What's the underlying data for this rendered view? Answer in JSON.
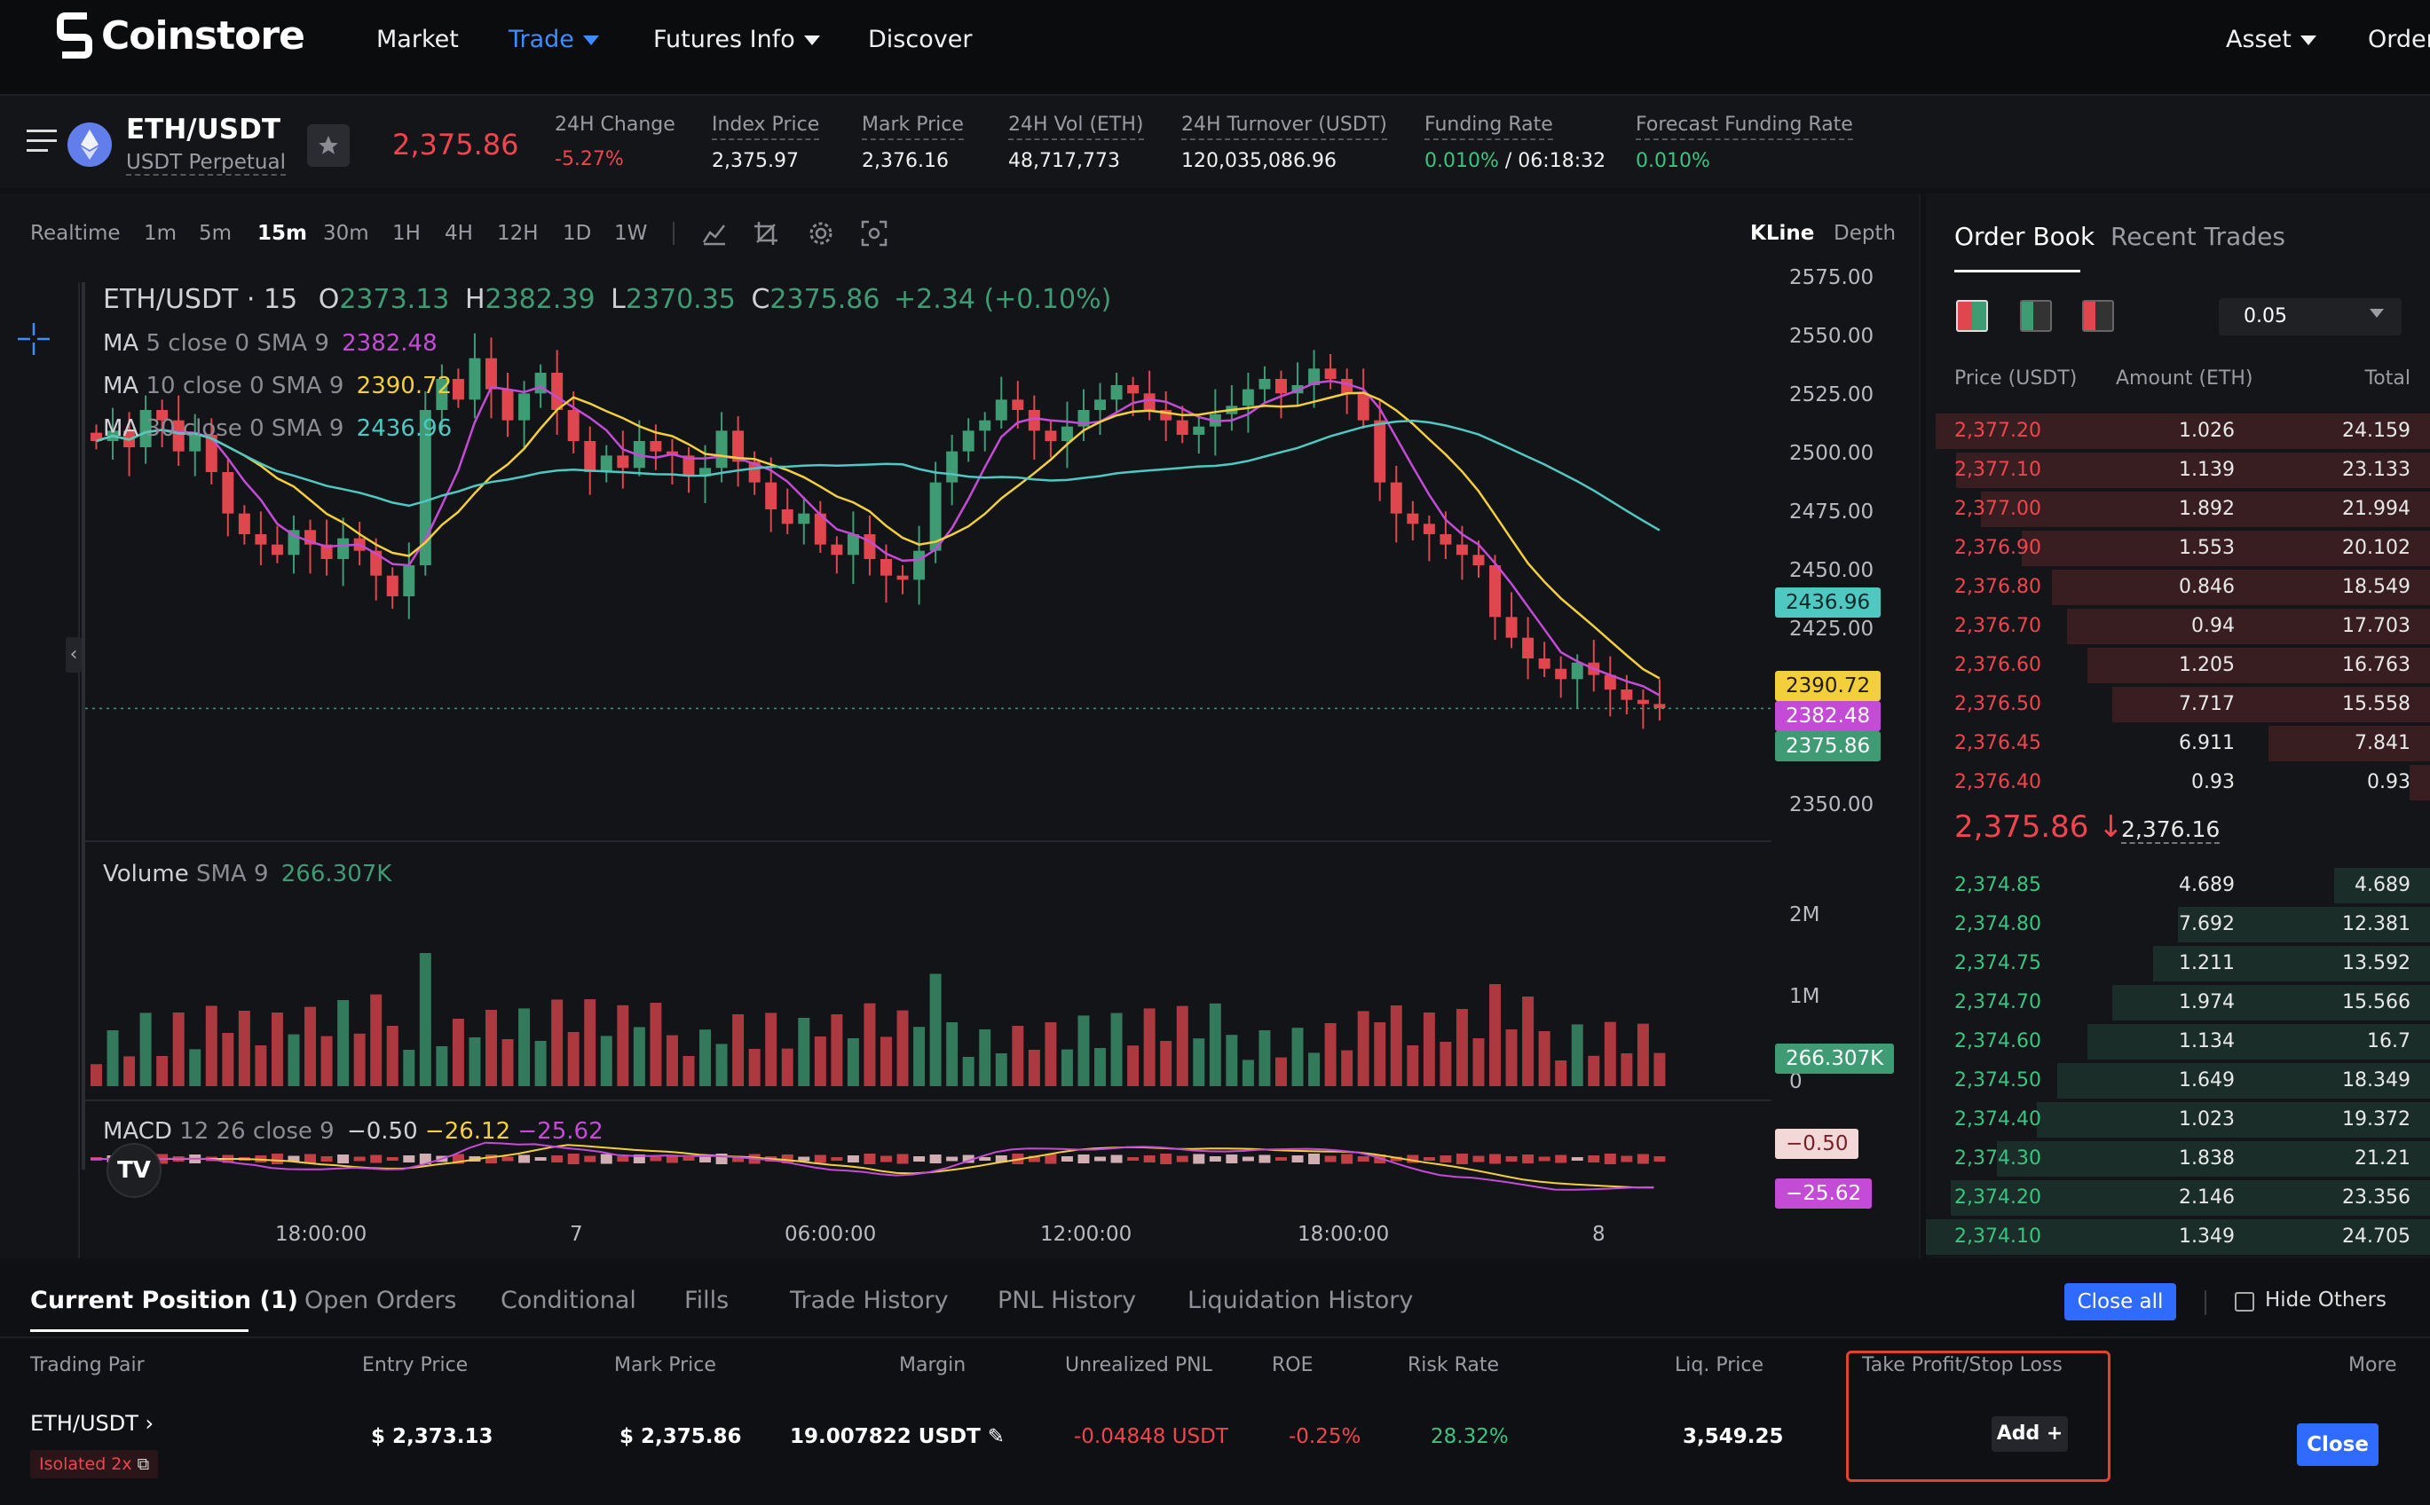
{
  "nav": {
    "logo": "Coinstore",
    "items": [
      {
        "label": "Market",
        "active": false,
        "dropdown": false
      },
      {
        "label": "Trade",
        "active": true,
        "dropdown": true
      },
      {
        "label": "Futures Info",
        "active": false,
        "dropdown": true
      },
      {
        "label": "Discover",
        "active": false,
        "dropdown": false
      }
    ],
    "right": {
      "asset": "Asset",
      "orders": "Order"
    },
    "colors": {
      "active": "#3f8cff"
    }
  },
  "ticker": {
    "symbol": "ETH/USDT",
    "subtitle": "USDT Perpetual",
    "last_price": "2,375.86",
    "stats": [
      {
        "label": "24H Change",
        "value": "-5.27%",
        "color": "#f0454e"
      },
      {
        "label": "Index Price",
        "value": "2,375.97"
      },
      {
        "label": "Mark Price",
        "value": "2,376.16"
      },
      {
        "label": "24H Vol (ETH)",
        "value": "48,717,773"
      },
      {
        "label": "24H Turnover (USDT)",
        "value": "120,035,086.96"
      },
      {
        "label": "Funding Rate",
        "value_a": "0.010%",
        "value_b": " / 06:18:32"
      },
      {
        "label": "Forecast Funding Rate",
        "value": "0.010%"
      }
    ]
  },
  "chart": {
    "timeframes": [
      "Realtime",
      "1m",
      "5m",
      "15m",
      "30m",
      "1H",
      "4H",
      "12H",
      "1D",
      "1W"
    ],
    "active_timeframe": "15m",
    "views": {
      "kline": "KLine",
      "depth": "Depth"
    },
    "legend": {
      "title": "ETH/USDT · 15",
      "o_label": "O",
      "o": "2373.13",
      "h_label": "H",
      "h": "2382.39",
      "l_label": "L",
      "l": "2370.35",
      "c_label": "C",
      "c": "2375.86",
      "chg": "+2.34 (+0.10%)",
      "ma5_label": "MA",
      "ma5_params": "5 close 0 SMA 9",
      "ma5": "2382.48",
      "ma10_label": "MA",
      "ma10_params": "10 close 0 SMA 9",
      "ma10": "2390.72",
      "ma30_label": "MA",
      "ma30_params": "30 close 0 SMA 9",
      "ma30": "2436.96",
      "vol_label": "Volume",
      "vol_params": "SMA 9",
      "vol": "266.307K",
      "macd_label": "MACD",
      "macd_params": "12 26 close 9",
      "macd1": "−0.50",
      "macd2": "−26.12",
      "macd3": "−25.62"
    },
    "price_axis": [
      "2575.00",
      "2550.00",
      "2525.00",
      "2500.00",
      "2475.00",
      "2450.00",
      "2425.00",
      "2350.00"
    ],
    "price_tags": {
      "ma30": "2436.96",
      "ma10": "2390.72",
      "ma5": "2382.48",
      "last": "2375.86",
      "vol": "266.307K",
      "macd_a": "−0.50",
      "macd_b": "−25.62"
    },
    "vol_axis": [
      "2M",
      "1M",
      "0"
    ],
    "time_axis": [
      "18:00:00",
      "7",
      "06:00:00",
      "12:00:00",
      "18:00:00",
      "8"
    ],
    "colors": {
      "up": "#3f9b74",
      "down": "#e0464e",
      "ma5": "#c44bd6",
      "ma10": "#f2cf3b",
      "ma30": "#4fc8c2"
    }
  },
  "chart_data": {
    "type": "candlestick",
    "symbol": "ETH/USDT",
    "interval": "15",
    "ylim": [
      2340,
      2580
    ],
    "close_series": [
      2505,
      2510,
      2502,
      2520,
      2515,
      2500,
      2508,
      2490,
      2470,
      2460,
      2455,
      2450,
      2462,
      2455,
      2448,
      2458,
      2452,
      2440,
      2430,
      2445,
      2520,
      2535,
      2525,
      2545,
      2530,
      2515,
      2528,
      2538,
      2520,
      2505,
      2490,
      2498,
      2492,
      2505,
      2500,
      2498,
      2488,
      2492,
      2510,
      2495,
      2485,
      2472,
      2465,
      2470,
      2455,
      2450,
      2460,
      2448,
      2440,
      2438,
      2452,
      2485,
      2500,
      2510,
      2515,
      2525,
      2520,
      2510,
      2505,
      2512,
      2520,
      2525,
      2532,
      2528,
      2520,
      2515,
      2508,
      2512,
      2518,
      2522,
      2530,
      2535,
      2528,
      2532,
      2540,
      2535,
      2528,
      2515,
      2485,
      2470,
      2465,
      2460,
      2455,
      2450,
      2445,
      2420,
      2410,
      2400,
      2395,
      2390,
      2398,
      2392,
      2385,
      2380,
      2378,
      2376
    ],
    "ma5_last": 2382.48,
    "ma10_last": 2390.72,
    "ma30_last": 2436.96,
    "last_price": 2375.86,
    "volume_last": "266.307K",
    "macd": [
      -0.5,
      -26.12,
      -25.62
    ]
  },
  "book": {
    "tabs": [
      "Order Book",
      "Recent Trades"
    ],
    "precision": "0.05",
    "headers": [
      "Price (USDT)",
      "Amount (ETH)",
      "Total"
    ],
    "asks": [
      [
        "2,377.20",
        "1.026",
        "24.159"
      ],
      [
        "2,377.10",
        "1.139",
        "23.133"
      ],
      [
        "2,377.00",
        "1.892",
        "21.994"
      ],
      [
        "2,376.90",
        "1.553",
        "20.102"
      ],
      [
        "2,376.80",
        "0.846",
        "18.549"
      ],
      [
        "2,376.70",
        "0.94",
        "17.703"
      ],
      [
        "2,376.60",
        "1.205",
        "16.763"
      ],
      [
        "2,376.50",
        "7.717",
        "15.558"
      ],
      [
        "2,376.45",
        "6.911",
        "7.841"
      ],
      [
        "2,376.40",
        "0.93",
        "0.93"
      ]
    ],
    "mid_price": "2,375.86",
    "mid_arrow": "↓",
    "mark_price": "2,376.16",
    "bids": [
      [
        "2,374.85",
        "4.689",
        "4.689"
      ],
      [
        "2,374.80",
        "7.692",
        "12.381"
      ],
      [
        "2,374.75",
        "1.211",
        "13.592"
      ],
      [
        "2,374.70",
        "1.974",
        "15.566"
      ],
      [
        "2,374.60",
        "1.134",
        "16.7"
      ],
      [
        "2,374.50",
        "1.649",
        "18.349"
      ],
      [
        "2,374.40",
        "1.023",
        "19.372"
      ],
      [
        "2,374.30",
        "1.838",
        "21.21"
      ],
      [
        "2,374.20",
        "2.146",
        "23.356"
      ],
      [
        "2,374.10",
        "1.349",
        "24.705"
      ]
    ],
    "ask_depth": [
      0.98,
      0.94,
      0.89,
      0.81,
      0.75,
      0.72,
      0.68,
      0.63,
      0.32,
      0.04
    ],
    "bid_depth": [
      0.19,
      0.5,
      0.55,
      0.63,
      0.68,
      0.74,
      0.78,
      0.86,
      0.95,
      1.0
    ]
  },
  "positions": {
    "tabs": [
      "Current Position (1)",
      "Open Orders",
      "Conditional",
      "Fills",
      "Trade History",
      "PNL History",
      "Liquidation History"
    ],
    "close_all": "Close all",
    "hide_others": "Hide Others",
    "columns": [
      "Trading Pair",
      "Entry Price",
      "Mark Price",
      "Margin",
      "Unrealized PNL",
      "ROE",
      "Risk Rate",
      "Liq. Price",
      "Take Profit/Stop Loss",
      "More"
    ],
    "row": {
      "pair": "ETH/USDT",
      "mode": "Isolated 2x",
      "entry": "$ 2,373.13",
      "mark": "$ 2,375.86",
      "margin": "19.007822 USDT",
      "pnl": "-0.04848 USDT",
      "roe": "-0.25%",
      "risk": "28.32%",
      "liq": "3,549.25",
      "tpsl": "Add +",
      "close": "Close"
    }
  }
}
